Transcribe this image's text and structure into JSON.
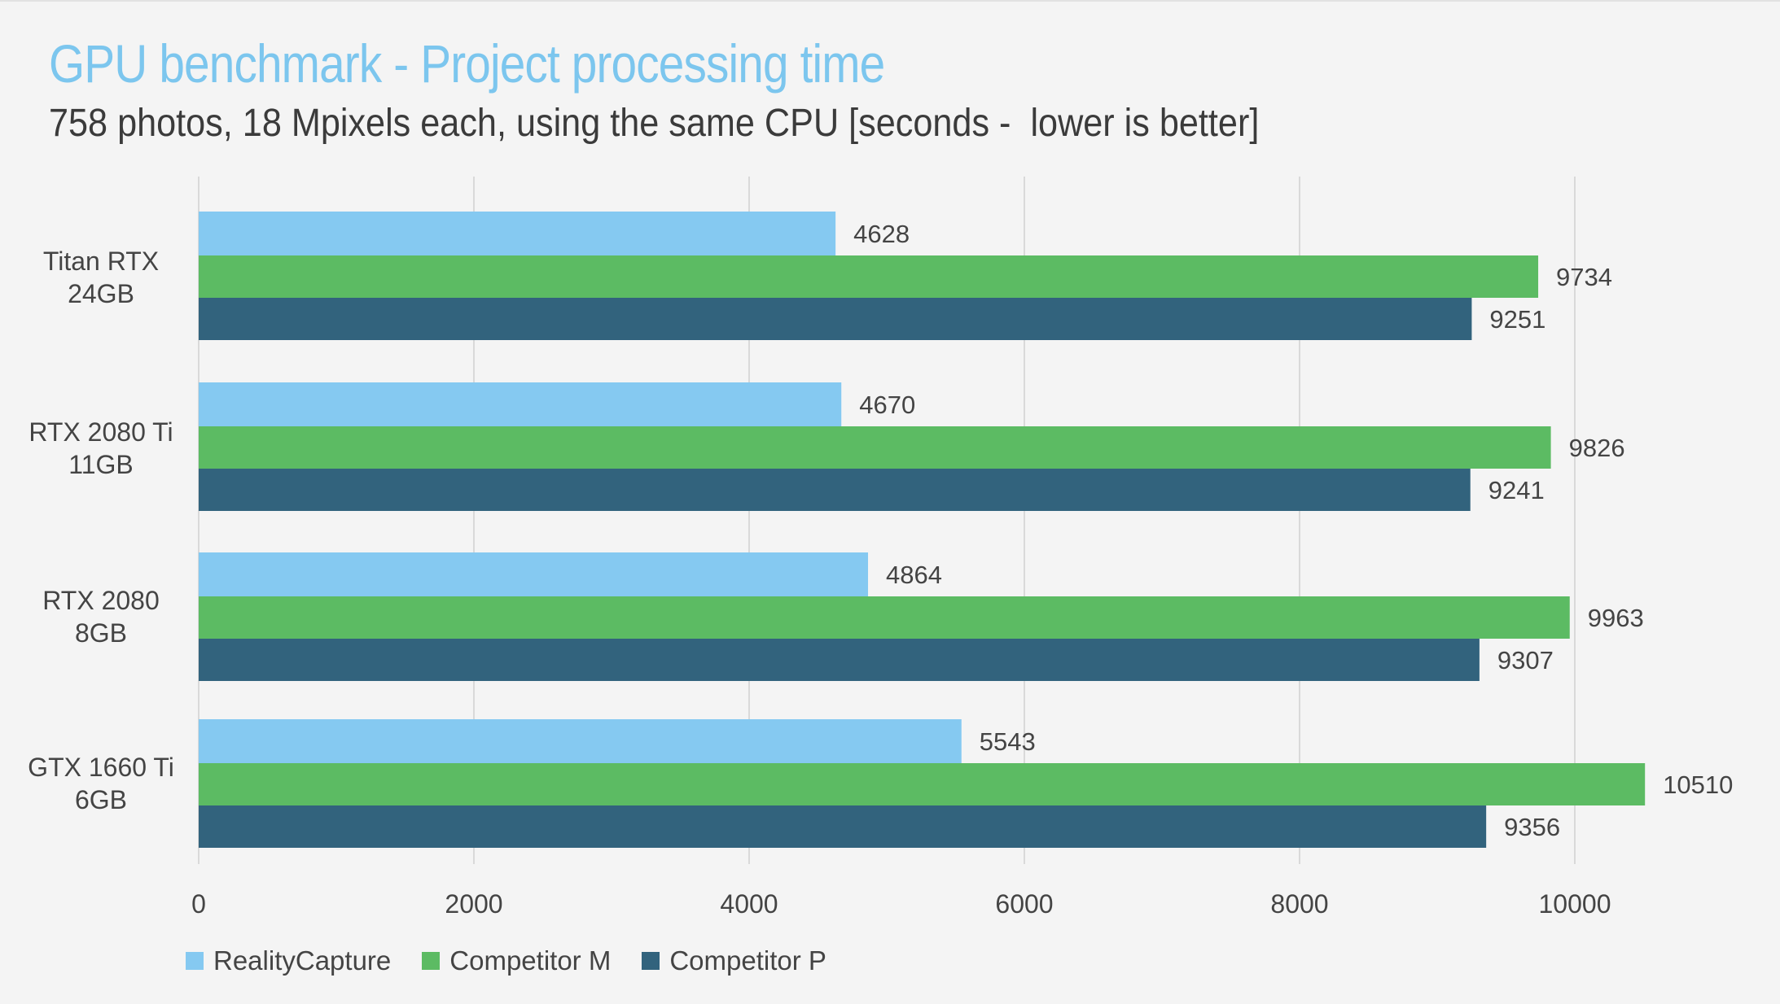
{
  "chart_data": {
    "type": "bar",
    "orientation": "horizontal",
    "title": "GPU benchmark - Project processing time",
    "subtitle": "758 photos, 18 Mpixels each, using the same CPU [seconds -  lower is better]",
    "categories": [
      [
        "Titan RTX",
        "24GB"
      ],
      [
        "RTX 2080 Ti",
        "11GB"
      ],
      [
        "RTX 2080",
        "8GB"
      ],
      [
        "GTX 1660 Ti",
        "6GB"
      ]
    ],
    "series": [
      {
        "name": "RealityCapture",
        "color": "#85c9f1",
        "values": [
          4628,
          4670,
          4864,
          5543
        ]
      },
      {
        "name": "Competitor M",
        "color": "#5cbb63",
        "values": [
          9734,
          9826,
          9963,
          10510
        ]
      },
      {
        "name": "Competitor P",
        "color": "#32637d",
        "values": [
          9251,
          9241,
          9307,
          9356
        ]
      }
    ],
    "xlim": [
      0,
      11500
    ],
    "xticks": [
      0,
      2000,
      4000,
      6000,
      8000,
      10000
    ],
    "grid": true,
    "legend_position": "bottom-left"
  }
}
